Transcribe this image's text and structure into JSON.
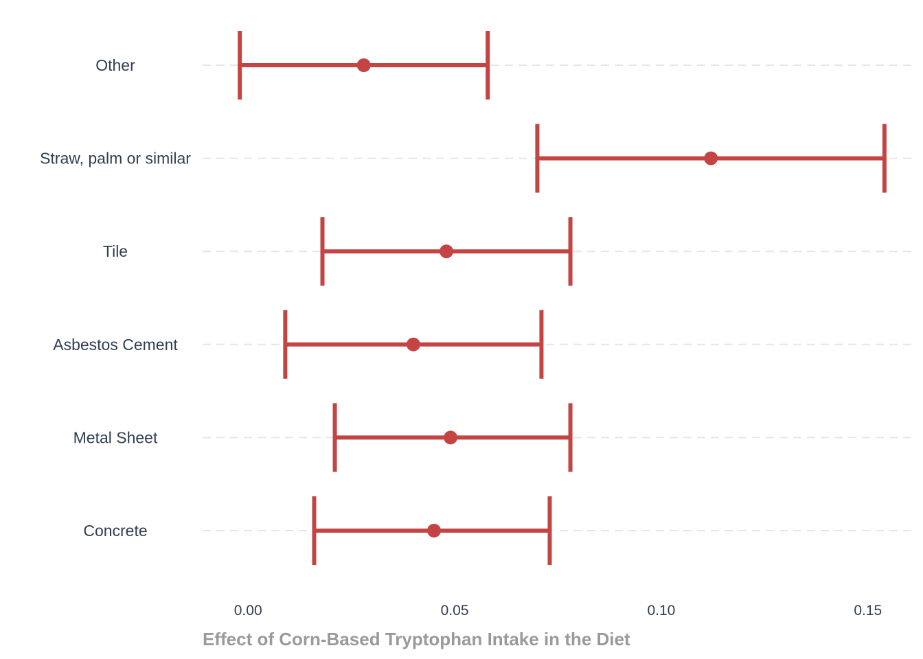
{
  "chart_data": {
    "type": "errorbar",
    "title": "",
    "xlabel": "Effect of Corn-Based Tryptophan Intake in the Diet",
    "ylabel": "",
    "xlim": [
      -0.011,
      0.161
    ],
    "xticks": [
      0.0,
      0.05,
      0.1,
      0.15
    ],
    "xtick_labels": [
      "0.00",
      "0.05",
      "0.10",
      "0.15"
    ],
    "grid": "horizontal-dashed",
    "color": "#c44444",
    "categories": [
      "Other",
      "Straw, palm or similar",
      "Tile",
      "Asbestos Cement",
      "Metal Sheet",
      "Concrete"
    ],
    "estimates": [
      0.028,
      0.112,
      0.048,
      0.04,
      0.049,
      0.045
    ],
    "lower": [
      -0.002,
      0.07,
      0.018,
      0.009,
      0.021,
      0.016
    ],
    "upper": [
      0.058,
      0.154,
      0.078,
      0.071,
      0.078,
      0.073
    ]
  }
}
